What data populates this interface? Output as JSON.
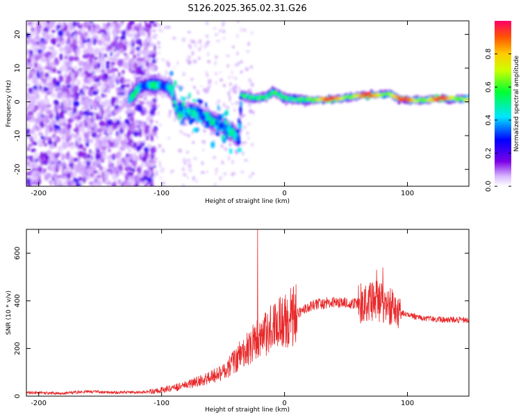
{
  "title": "S126.2025.365.02.31.G26",
  "colors": {
    "snr_line": "#e8282a",
    "frame": "#000000",
    "background": "#ffffff"
  },
  "chart_data": [
    {
      "type": "heatmap",
      "name": "spectrogram",
      "xlabel": "Height of straight line (km)",
      "ylabel": "Frequency (Hz)",
      "xlim": [
        -210,
        150
      ],
      "ylim": [
        -25,
        24
      ],
      "xticks": [
        -200,
        -100,
        0,
        100
      ],
      "yticks": [
        -20,
        -10,
        0,
        10,
        20
      ],
      "colorbar": {
        "label": "Normalized spectral amplitude",
        "range": [
          0.0,
          1.0
        ],
        "ticks": [
          0.0,
          0.2,
          0.4,
          0.6,
          0.8
        ],
        "tick_labels": [
          "0.0",
          "0.2",
          "0.4",
          "0.6",
          "0.8"
        ]
      },
      "ridge": [
        {
          "x": -125,
          "f": 1.0
        },
        {
          "x": -118,
          "f": 4.5
        },
        {
          "x": -110,
          "f": 5.0
        },
        {
          "x": -100,
          "f": 5.0
        },
        {
          "x": -92,
          "f": 4.0
        },
        {
          "x": -88,
          "f": -2.0
        },
        {
          "x": -80,
          "f": -3.0
        },
        {
          "x": -70,
          "f": -3.5
        },
        {
          "x": -62,
          "f": -5.0
        },
        {
          "x": -55,
          "f": -6.5
        },
        {
          "x": -48,
          "f": -8.0
        },
        {
          "x": -42,
          "f": -9.0
        },
        {
          "x": -37,
          "f": -11.0
        },
        {
          "x": -35,
          "f": 2.0
        },
        {
          "x": -25,
          "f": 1.0
        },
        {
          "x": -15,
          "f": 1.5
        },
        {
          "x": -8,
          "f": 3.0
        },
        {
          "x": 0,
          "f": 1.0
        },
        {
          "x": 20,
          "f": 0.5
        },
        {
          "x": 40,
          "f": 0.8
        },
        {
          "x": 55,
          "f": 1.5
        },
        {
          "x": 65,
          "f": 2.0
        },
        {
          "x": 75,
          "f": 2.0
        },
        {
          "x": 85,
          "f": 2.5
        },
        {
          "x": 95,
          "f": 0.5
        },
        {
          "x": 110,
          "f": 0.5
        },
        {
          "x": 130,
          "f": 1.0
        },
        {
          "x": 150,
          "f": 0.8
        }
      ]
    },
    {
      "type": "line",
      "name": "snr",
      "xlabel": "Height of straight line (km)",
      "ylabel": "SNR (10 * v/v)",
      "xlim": [
        -210,
        150
      ],
      "ylim": [
        0,
        700
      ],
      "xticks": [
        -200,
        -100,
        0,
        100
      ],
      "yticks": [
        0,
        200,
        400,
        600
      ],
      "envelope": [
        {
          "x": -210,
          "snr": 15
        },
        {
          "x": -180,
          "snr": 12
        },
        {
          "x": -160,
          "snr": 20
        },
        {
          "x": -140,
          "snr": 15
        },
        {
          "x": -110,
          "snr": 18
        },
        {
          "x": -95,
          "snr": 30
        },
        {
          "x": -80,
          "snr": 45
        },
        {
          "x": -65,
          "snr": 70
        },
        {
          "x": -50,
          "snr": 100
        },
        {
          "x": -40,
          "snr": 150
        },
        {
          "x": -30,
          "snr": 200
        },
        {
          "x": -22,
          "snr": 240
        },
        {
          "x": -15,
          "snr": 270
        },
        {
          "x": -5,
          "snr": 300
        },
        {
          "x": 5,
          "snr": 330
        },
        {
          "x": 15,
          "snr": 360
        },
        {
          "x": 25,
          "snr": 385
        },
        {
          "x": 40,
          "snr": 395
        },
        {
          "x": 55,
          "snr": 390
        },
        {
          "x": 65,
          "snr": 390
        },
        {
          "x": 75,
          "snr": 400
        },
        {
          "x": 85,
          "snr": 380
        },
        {
          "x": 95,
          "snr": 350
        },
        {
          "x": 110,
          "snr": 330
        },
        {
          "x": 130,
          "snr": 320
        },
        {
          "x": 150,
          "snr": 320
        }
      ],
      "spikes": [
        {
          "x": -22,
          "snr": 700
        },
        {
          "x": 75,
          "snr": 530
        },
        {
          "x": 80,
          "snr": 540
        }
      ]
    }
  ]
}
